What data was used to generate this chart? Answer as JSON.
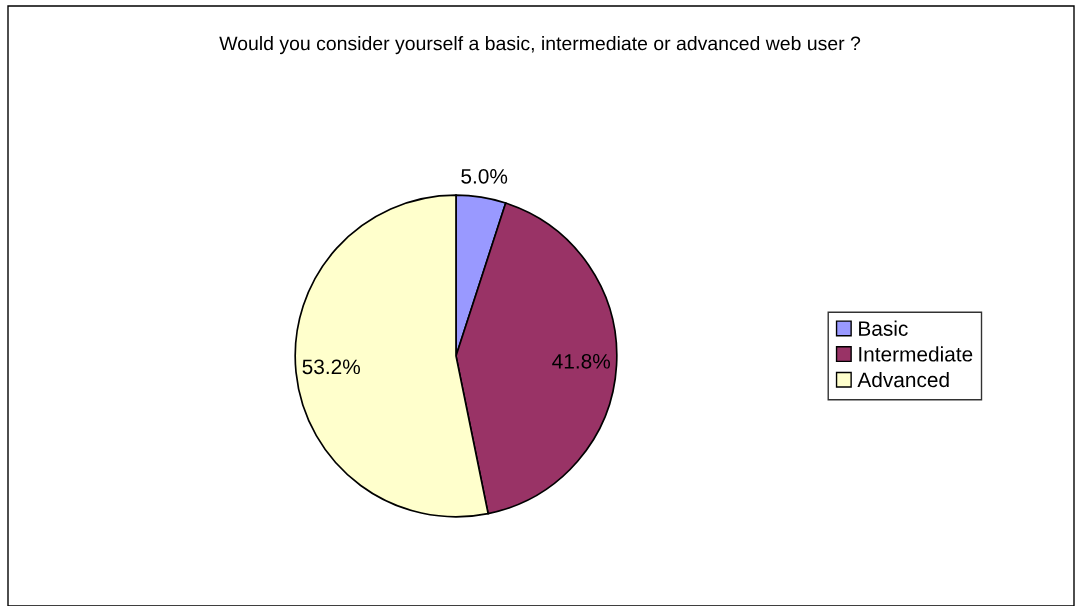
{
  "chart_data": {
    "type": "pie",
    "title": "Would you consider yourself a basic, intermediate or advanced web user ?",
    "categories": [
      "Basic",
      "Intermediate",
      "Advanced"
    ],
    "values": [
      5.0,
      41.8,
      53.2
    ],
    "colors": [
      "#9999ff",
      "#993366",
      "#ffffcc"
    ],
    "value_labels": [
      "5.0%",
      "41.8%",
      "53.2%"
    ],
    "legend": "right"
  }
}
